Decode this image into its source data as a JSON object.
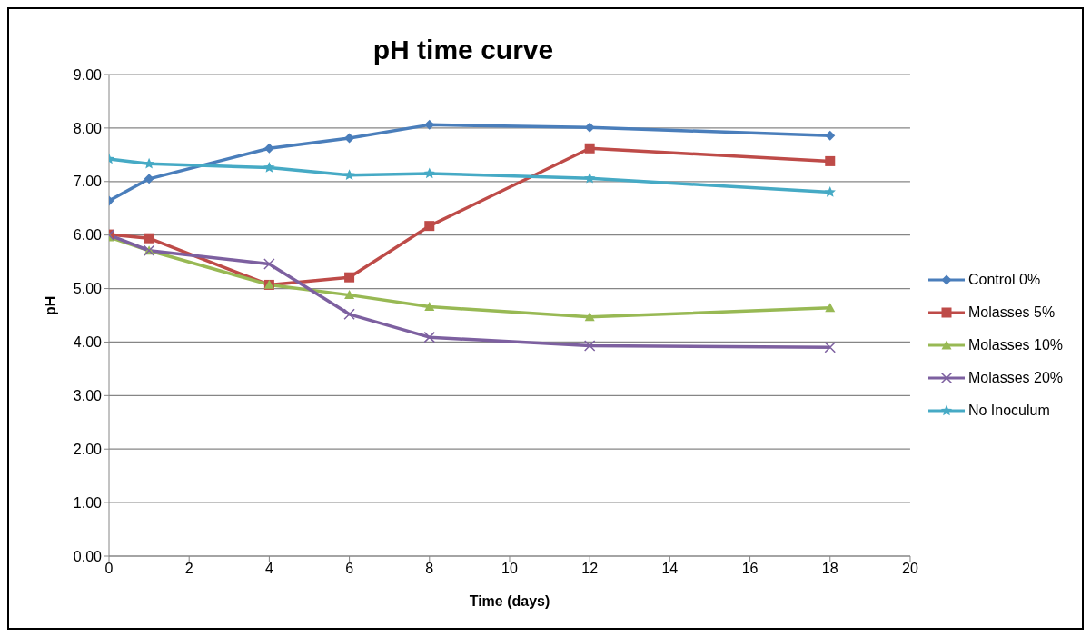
{
  "chart_data": {
    "type": "line",
    "title": "pH time curve",
    "xlabel": "Time (days)",
    "ylabel": "pH",
    "x": [
      0,
      1,
      4,
      6,
      8,
      12,
      18
    ],
    "series": [
      {
        "name": "Control 0%",
        "color": "#4a7ebb",
        "marker": "diamond",
        "values": [
          6.64,
          7.05,
          7.62,
          7.81,
          8.06,
          8.01,
          7.86
        ]
      },
      {
        "name": "Molasses 5%",
        "color": "#be4b48",
        "marker": "square",
        "values": [
          6.01,
          5.94,
          5.07,
          5.21,
          6.17,
          7.62,
          7.38
        ]
      },
      {
        "name": "Molasses 10%",
        "color": "#98b954",
        "marker": "triangle",
        "values": [
          5.96,
          5.71,
          5.07,
          4.88,
          4.66,
          4.47,
          4.64
        ]
      },
      {
        "name": "Molasses 20%",
        "color": "#7d60a0",
        "marker": "cross",
        "values": [
          6.0,
          5.71,
          5.46,
          4.52,
          4.09,
          3.93,
          3.9
        ]
      },
      {
        "name": "No Inoculum",
        "color": "#46aac5",
        "marker": "star",
        "values": [
          7.42,
          7.33,
          7.26,
          7.12,
          7.15,
          7.06,
          6.8
        ]
      }
    ],
    "xlim": [
      0,
      20
    ],
    "xticks": [
      0,
      2,
      4,
      6,
      8,
      10,
      12,
      14,
      16,
      18,
      20
    ],
    "ylim": [
      0,
      9
    ],
    "yticks": [
      {
        "value": 0,
        "label": "0.00"
      },
      {
        "value": 1,
        "label": "1.00"
      },
      {
        "value": 2,
        "label": "2.00"
      },
      {
        "value": 3,
        "label": "3.00"
      },
      {
        "value": 4,
        "label": "4.00"
      },
      {
        "value": 5,
        "label": "5.00"
      },
      {
        "value": 6,
        "label": "6.00"
      },
      {
        "value": 7,
        "label": "7.00"
      },
      {
        "value": 8,
        "label": "8.00"
      },
      {
        "value": 9,
        "label": "9.00"
      }
    ],
    "grid": "y",
    "legend": "right",
    "line_style": "solid"
  }
}
